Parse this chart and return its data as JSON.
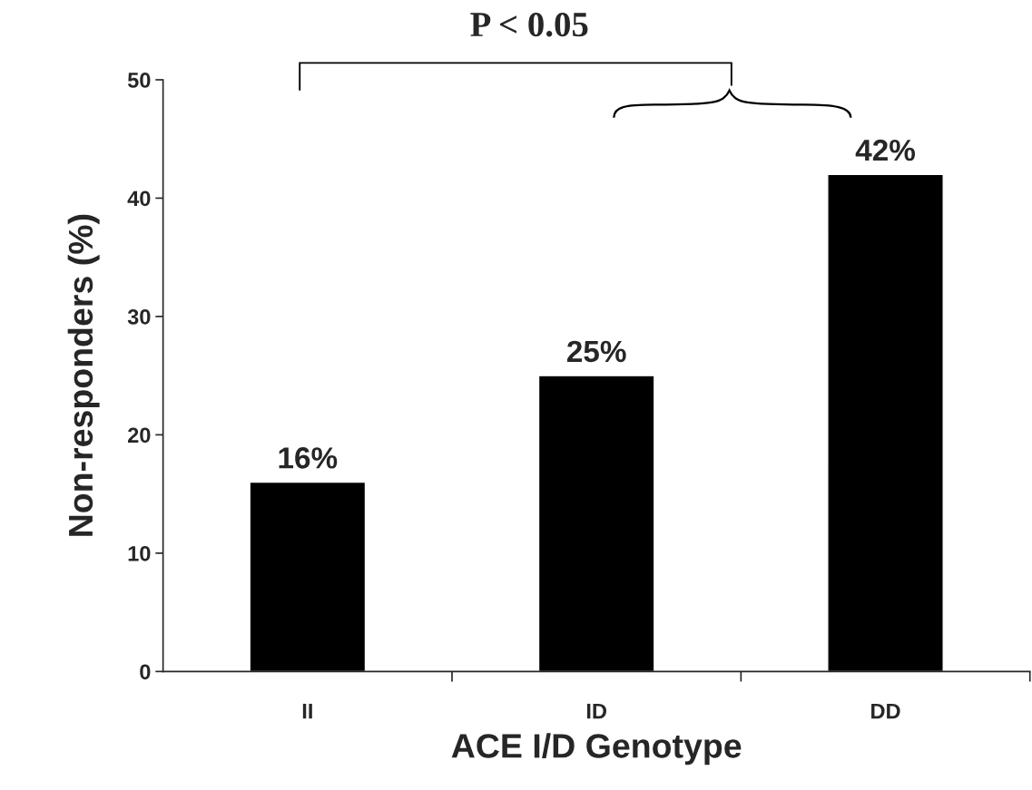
{
  "chart_data": {
    "type": "bar",
    "xlabel": "ACE I/D Genotype",
    "ylabel": "Non-responders (%)",
    "categories": [
      "II",
      "ID",
      "DD"
    ],
    "values": [
      16,
      25,
      42
    ],
    "value_labels": [
      "16%",
      "25%",
      "42%"
    ],
    "color": "#000000",
    "ylim": [
      0,
      50
    ],
    "yticks": [
      0,
      10,
      20,
      30,
      40,
      50
    ],
    "grid": false,
    "legend": false,
    "annotations": [
      "P < 0.05"
    ]
  }
}
